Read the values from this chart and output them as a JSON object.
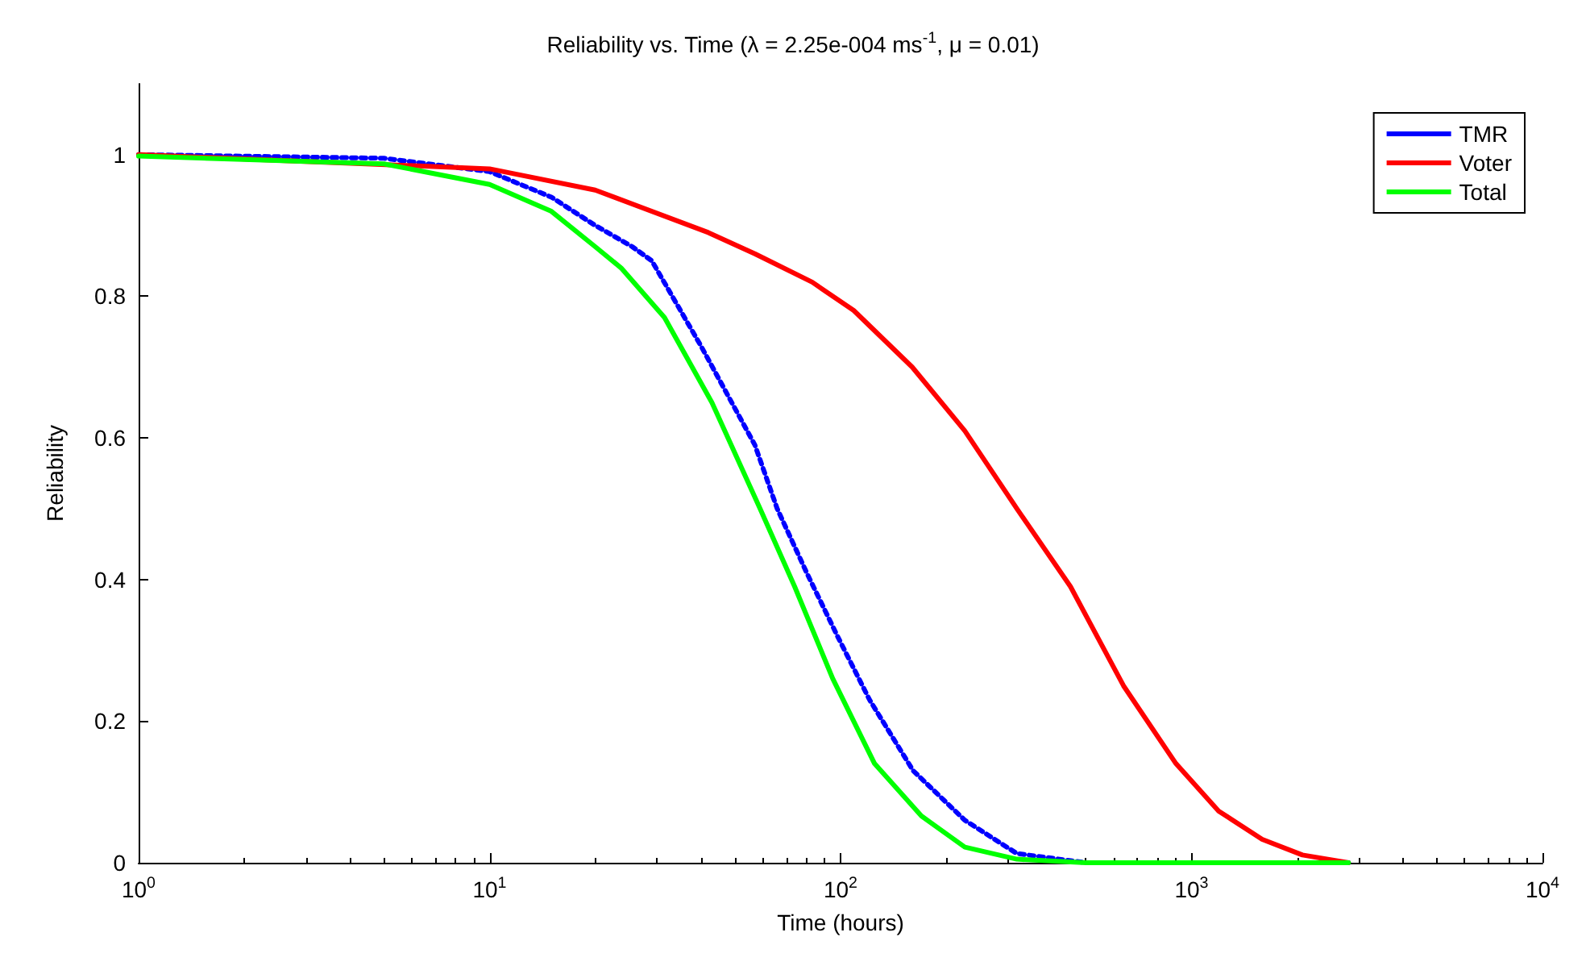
{
  "chart_data": {
    "type": "line",
    "title": "Reliability vs. Time (λ = 2.25e-004 ms$^{-1}$, μ = 0.01)",
    "xlabel": "Time (hours)",
    "ylabel": "Reliability",
    "log": "x",
    "xlim": [
      1,
      10000
    ],
    "xticks": [
      {
        "value": 1,
        "label": "10$^{0}$"
      },
      {
        "value": 10,
        "label": "10$^{1}$"
      },
      {
        "value": 100,
        "label": "10$^{2}$"
      },
      {
        "value": 1000,
        "label": "10$^{3}$"
      },
      {
        "value": 10000,
        "label": "10$^{4}$"
      }
    ],
    "ylim": [
      0,
      1.1
    ],
    "yticks": [
      0,
      0.2,
      0.4,
      0.6,
      0.8,
      1
    ],
    "grid": false,
    "legend": "top right",
    "marker": "none",
    "series": [
      {
        "name": "TMR",
        "color": "#0000ff",
        "line_style": "dotted",
        "x": [
          1,
          5,
          10,
          15,
          20,
          25.5,
          29,
          40,
          57,
          66,
          80,
          98,
          121,
          161,
          226,
          318,
          500,
          1000,
          2800
        ],
        "values": [
          1.0,
          0.995,
          0.976,
          0.94,
          0.9,
          0.87,
          0.85,
          0.73,
          0.59,
          0.5,
          0.41,
          0.32,
          0.23,
          0.13,
          0.06,
          0.013,
          0,
          0,
          0
        ]
      },
      {
        "name": "Voter",
        "color": "#ff0000",
        "line_style": "solid",
        "x": [
          1,
          10,
          20,
          42,
          57,
          83,
          109,
          160,
          226,
          318,
          452,
          640,
          903,
          1195,
          1590,
          2070,
          2800
        ],
        "values": [
          1.0,
          0.98,
          0.95,
          0.89,
          0.86,
          0.82,
          0.78,
          0.7,
          0.61,
          0.5,
          0.39,
          0.25,
          0.14,
          0.073,
          0.033,
          0.011,
          0
        ]
      },
      {
        "name": "Total",
        "color": "#00ff00",
        "line_style": "solid",
        "x": [
          1,
          5,
          10,
          15,
          20,
          23.7,
          31.5,
          43,
          59,
          74,
          95,
          125,
          170,
          226,
          318,
          500,
          1000,
          2800
        ],
        "values": [
          0.998,
          0.987,
          0.958,
          0.92,
          0.87,
          0.84,
          0.77,
          0.65,
          0.5,
          0.39,
          0.26,
          0.14,
          0.066,
          0.022,
          0.005,
          0,
          0,
          0
        ]
      }
    ]
  }
}
